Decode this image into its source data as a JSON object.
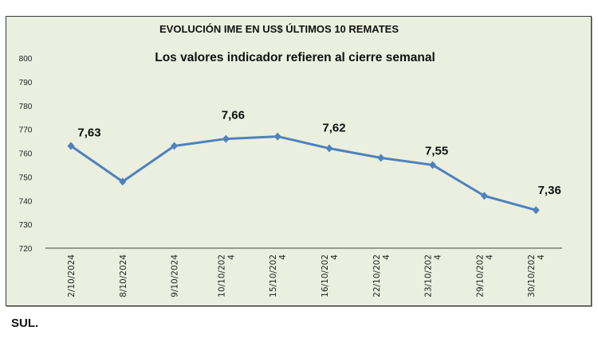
{
  "chart_data": {
    "type": "line",
    "title": "EVOLUCIÓN IME EN US$ ÚLTIMOS 10 REMATES",
    "subtitle": "Los valores indicador refieren al cierre semanal",
    "xlabel": "",
    "ylabel": "",
    "categories": [
      "2/10/2024",
      "8/10/2024",
      "9/10/2024",
      "10/10/202\n4",
      "15/10/202\n4",
      "16/10/202\n4",
      "22/10/202\n4",
      "23/10/202\n4",
      "29/10/202\n4",
      "30/10/202\n4"
    ],
    "values": [
      763,
      748,
      763,
      766,
      767,
      762,
      758,
      755,
      742,
      736
    ],
    "data_labels": [
      {
        "index": 0,
        "text": "7,63"
      },
      {
        "index": 3,
        "text": "7,66"
      },
      {
        "index": 5,
        "text": "7,62"
      },
      {
        "index": 7,
        "text": "7,55"
      },
      {
        "index": 9,
        "text": "7,36"
      }
    ],
    "ylim": [
      720,
      800
    ],
    "yticks": [
      720,
      730,
      740,
      750,
      760,
      770,
      780,
      790,
      800
    ],
    "grid": false,
    "legend": "none",
    "line_color": "#4f81bd",
    "background_color": "#ebefdf"
  },
  "footer": "SUL."
}
